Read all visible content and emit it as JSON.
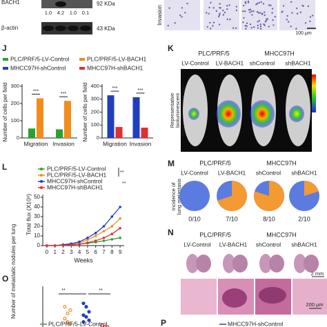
{
  "blot": {
    "protein": "BACH1",
    "protein_size": "92 KDa",
    "ratios": [
      "1.0",
      "4.2",
      "1.0",
      "0.1"
    ],
    "control": "β-actin",
    "control_size": "43 KDa"
  },
  "invasion": {
    "label": "Invasion",
    "scale_bar": "100 μm"
  },
  "panel_j": {
    "label": "J",
    "legend": [
      {
        "name": "PLC/PRF/5-LV-Control",
        "color": "#2ca02c"
      },
      {
        "name": "PLC/PRF/5-LV-BACH1",
        "color": "#f28c1c"
      },
      {
        "name": "MHCC97H-shControl",
        "color": "#1f3fbf"
      },
      {
        "name": "MHCC97H-shBACH1",
        "color": "#e03030"
      }
    ],
    "charts": [
      {
        "type": "bar",
        "ylabel": "Number of cells per field",
        "categories": [
          "Migration",
          "Invasion"
        ],
        "series": [
          {
            "color": "#2ca02c",
            "values": [
              55,
              50
            ]
          },
          {
            "color": "#f28c1c",
            "values": [
              230,
              215
            ]
          }
        ],
        "ylim": [
          0,
          300
        ],
        "yticks": [
          0,
          100,
          200,
          300
        ],
        "significance": [
          "***",
          "***"
        ]
      },
      {
        "type": "bar",
        "ylabel": "Number of cells per field",
        "categories": [
          "Migration",
          "Invasion"
        ],
        "series": [
          {
            "color": "#1f3fbf",
            "values": [
              330,
              315
            ]
          },
          {
            "color": "#e03030",
            "values": [
              85,
              80
            ]
          }
        ],
        "ylim": [
          0,
          400
        ],
        "yticks": [
          0,
          100,
          200,
          300,
          400
        ],
        "significance": [
          "***",
          "***"
        ]
      }
    ]
  },
  "panel_k": {
    "label": "K",
    "groups": [
      {
        "name": "PLC/PRF/5",
        "conditions": [
          "LV-Control",
          "LV-BACH1"
        ]
      },
      {
        "name": "MHCC97H",
        "conditions": [
          "shControl",
          "shBACH1"
        ]
      }
    ],
    "ylabel": [
      "Representative",
      "bioluminescent",
      "imaging in mouse liver"
    ]
  },
  "panel_l": {
    "label": "L",
    "chart_data": {
      "type": "line",
      "x": [
        0,
        1,
        2,
        3,
        4,
        5,
        6,
        7,
        8,
        9
      ],
      "xlim": [
        -0.5,
        9.5
      ],
      "xticks": [
        0,
        1,
        2,
        3,
        4,
        5,
        6,
        7,
        8,
        9
      ],
      "xlabel": "Weeks",
      "ylabel": "Total flux (X10⁸)",
      "ylim": [
        0,
        50
      ],
      "yticks": [
        0,
        10,
        20,
        30,
        40,
        50
      ],
      "series": [
        {
          "name": "PLC/PRF/5-LV-Control",
          "color": "#2ca02c",
          "values": [
            0,
            0,
            0.3,
            0.8,
            1.5,
            2.5,
            3.5,
            5,
            6.5,
            8
          ]
        },
        {
          "name": "PLC/PRF/5-LV-BACH1",
          "color": "#f28c1c",
          "values": [
            0,
            0,
            0.5,
            1.5,
            3,
            6,
            10,
            15,
            20,
            28
          ]
        },
        {
          "name": "MHCC97H-shControl",
          "color": "#1f3fbf",
          "values": [
            0,
            0,
            1,
            2,
            4,
            8,
            13,
            20,
            30,
            40
          ]
        },
        {
          "name": "MHCC97H-shBACH1",
          "color": "#e03030",
          "values": [
            0,
            0,
            0.3,
            0.8,
            1.5,
            3,
            5,
            8,
            12,
            18
          ]
        }
      ],
      "significance": [
        "**",
        "**"
      ]
    }
  },
  "panel_m": {
    "label": "M",
    "groups": [
      {
        "name": "PLC/PRF/5",
        "conditions": [
          "LV-Control",
          "LV-BACH1"
        ]
      },
      {
        "name": "MHCC97H",
        "conditions": [
          "shControl",
          "shBACH1"
        ]
      }
    ],
    "ylabel": [
      "Incidence of",
      "lung metastasis"
    ],
    "colors": [
      "#5b7be0",
      "#f39a32"
    ],
    "pies": [
      {
        "positive": 0,
        "total": 10,
        "label": "0/10"
      },
      {
        "positive": 7,
        "total": 10,
        "label": "7/10"
      },
      {
        "positive": 8,
        "total": 10,
        "label": "8/10"
      },
      {
        "positive": 2,
        "total": 10,
        "label": "2/10"
      }
    ]
  },
  "panel_n": {
    "label": "N",
    "groups": [
      {
        "name": "PLC/PRF/5",
        "conditions": [
          "LV-Control",
          "LV-BACH1"
        ]
      },
      {
        "name": "MHCC97H",
        "conditions": [
          "shControl",
          "shBACH1"
        ]
      }
    ],
    "scale_bars": [
      "2 mm",
      "200 μm"
    ]
  },
  "panel_o": {
    "label": "O",
    "chart_data": {
      "type": "scatter",
      "ylabel": "Number of metastatic nodules per lung",
      "ylim": [
        0,
        20
      ],
      "groups": [
        {
          "color": "#f28c1c",
          "values": [
            12,
            8,
            10,
            5,
            3,
            2
          ]
        },
        {
          "color": "#1f3fbf",
          "values": [
            14,
            12,
            9,
            7,
            6,
            4,
            3
          ]
        },
        {
          "color": "#e03030",
          "values": [
            1,
            0,
            0
          ]
        }
      ],
      "significance": [
        "**",
        "**"
      ]
    }
  },
  "panel_p": {
    "label": "P",
    "legend": [
      {
        "name": "PLC/PRF/5-LV-Control",
        "color": "#2ca02c"
      },
      {
        "name": "MHCC97H-shControl",
        "color": "#1f3fbf"
      }
    ]
  }
}
